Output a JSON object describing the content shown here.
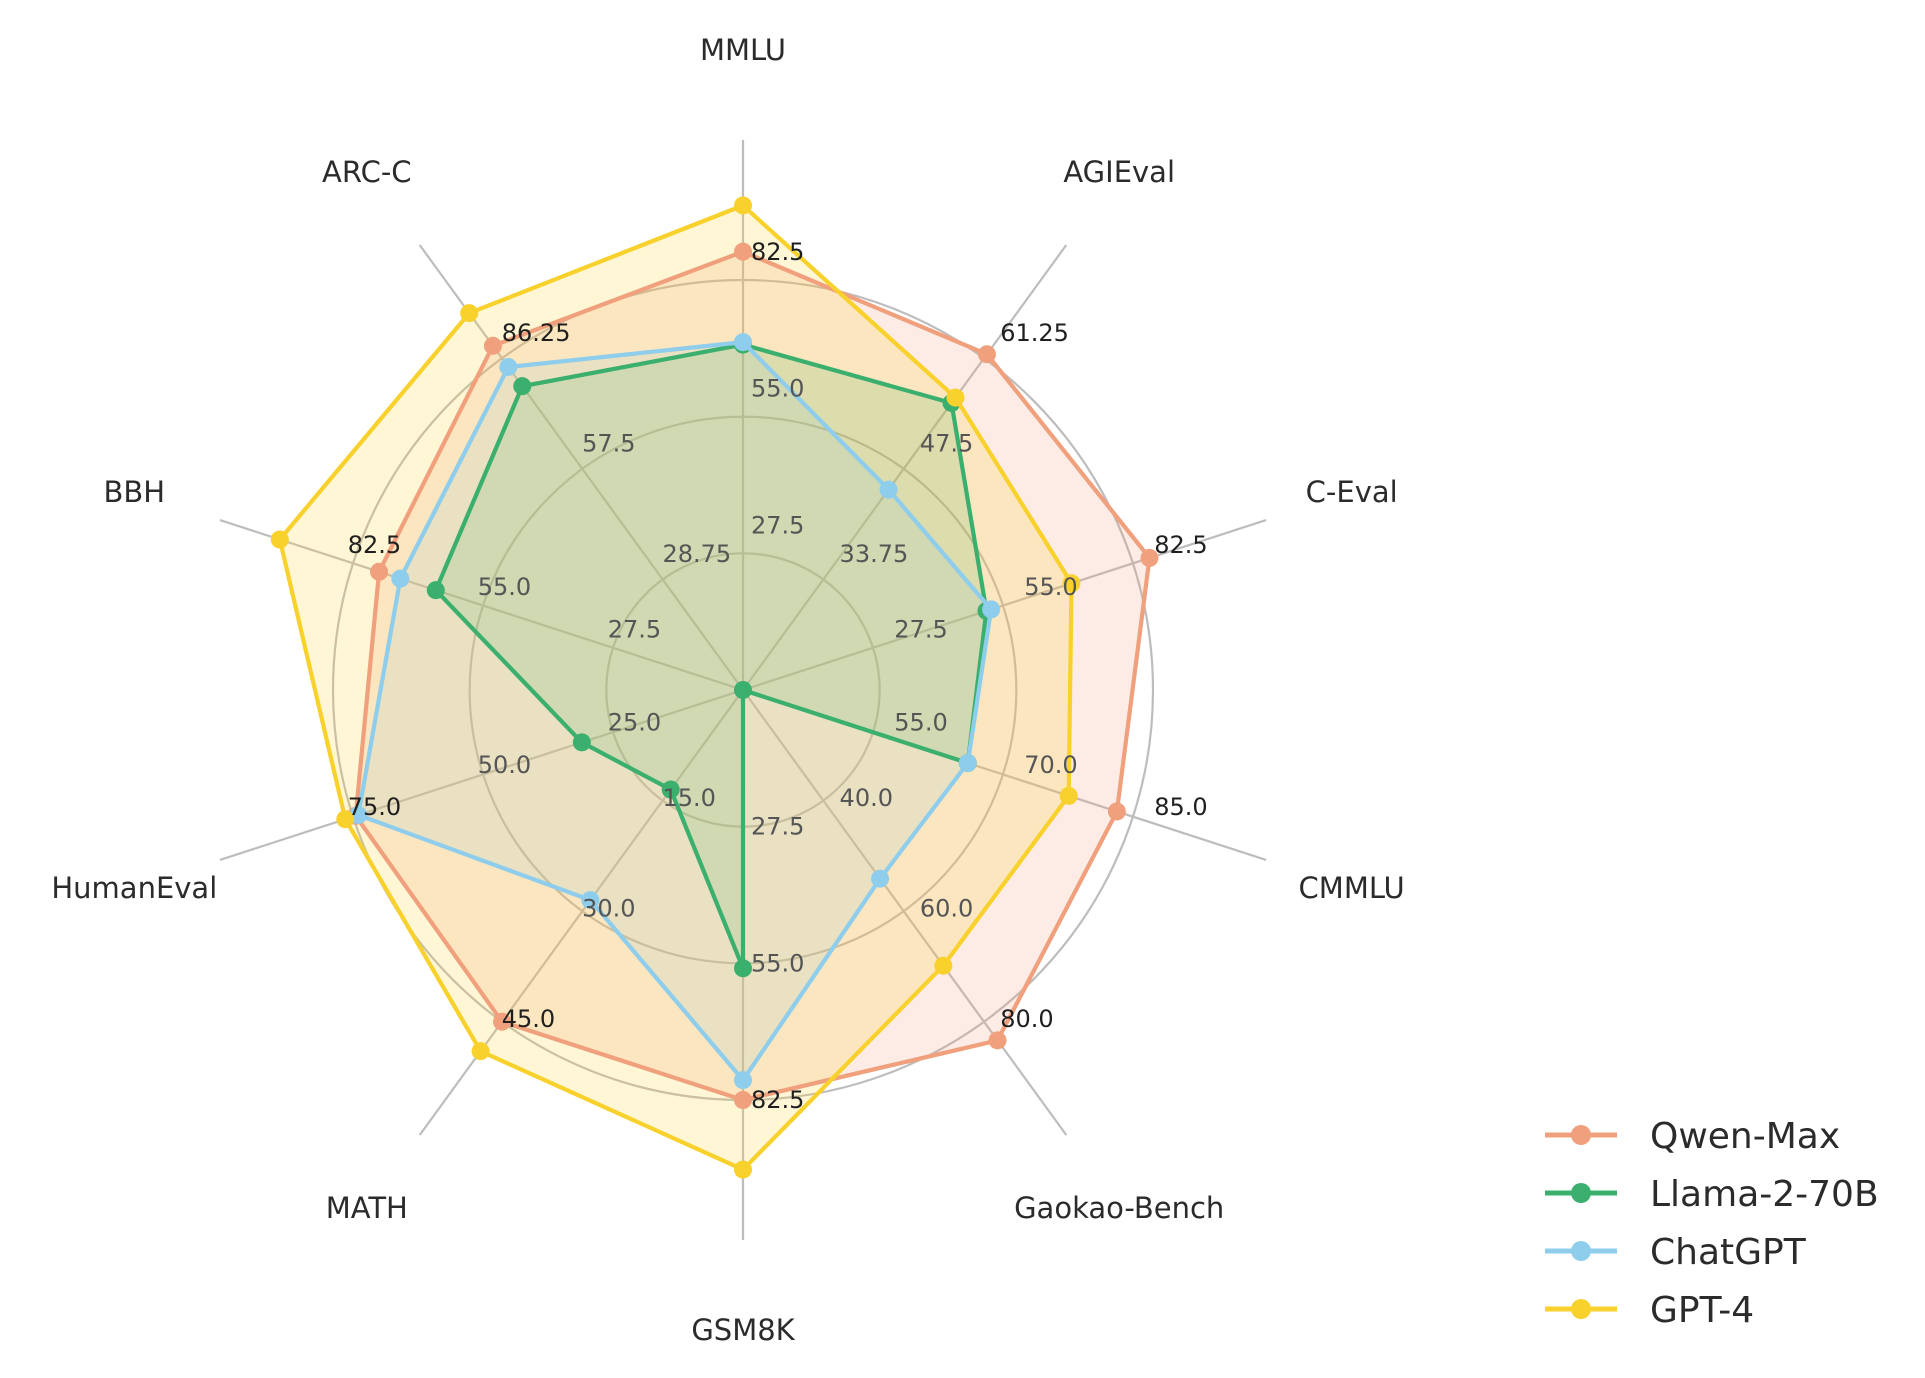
{
  "chart_data": {
    "type": "radar",
    "axes": [
      "MMLU",
      "AGIEval",
      "C-Eval",
      "CMMLU",
      "Gaokao-Bench",
      "GSM8K",
      "MATH",
      "HumanEval",
      "BBH",
      "ARC-C"
    ],
    "axis_ranges": [
      {
        "axis": "MMLU",
        "ticks": [
          "27.5",
          "55.0",
          "82.5"
        ],
        "max": 82.5
      },
      {
        "axis": "AGIEval",
        "ticks": [
          "33.75",
          "47.5",
          "61.25"
        ],
        "max": 61.25
      },
      {
        "axis": "C-Eval",
        "ticks": [
          "27.5",
          "55.0",
          "82.5"
        ],
        "max": 82.5
      },
      {
        "axis": "CMMLU",
        "ticks": [
          "55.0",
          "70.0",
          "85.0"
        ],
        "max": 85.0
      },
      {
        "axis": "Gaokao-Bench",
        "ticks": [
          "40.0",
          "60.0",
          "80.0"
        ],
        "max": 80.0
      },
      {
        "axis": "GSM8K",
        "ticks": [
          "27.5",
          "55.0",
          "82.5"
        ],
        "max": 82.5
      },
      {
        "axis": "MATH",
        "ticks": [
          "15.0",
          "30.0",
          "45.0"
        ],
        "max": 45.0
      },
      {
        "axis": "HumanEval",
        "ticks": [
          "25.0",
          "50.0",
          "75.0"
        ],
        "max": 75.0
      },
      {
        "axis": "BBH",
        "ticks": [
          "27.5",
          "55.0",
          "82.5"
        ],
        "max": 82.5
      },
      {
        "axis": "ARC-C",
        "ticks": [
          "28.75",
          "57.5",
          "86.25"
        ],
        "max": 86.25
      }
    ],
    "series": [
      {
        "name": "Qwen-Max",
        "color": "#f0a07c",
        "values": [
          88.2,
          62.0,
          86.0,
          81.5,
          84.5,
          82.5,
          45.0,
          74.5,
          77.0,
          89.5
        ]
      },
      {
        "name": "Llama-2-70B",
        "color": "#3aaf6e",
        "values": [
          69.5,
          53.0,
          51.5,
          49.0,
          0.0,
          56.0,
          13.5,
          31.0,
          65.0,
          79.0
        ]
      },
      {
        "name": "ChatGPT",
        "color": "#8ecdec",
        "values": [
          70.0,
          37.0,
          52.5,
          49.0,
          45.5,
          78.5,
          28.5,
          74.0,
          72.5,
          84.0
        ]
      },
      {
        "name": "GPT-4",
        "color": "#f8d12c",
        "values": [
          97.5,
          54.0,
          69.5,
          71.0,
          66.5,
          96.5,
          49.0,
          76.5,
          98.0,
          98.0
        ]
      }
    ],
    "legend_position": "bottom-right",
    "grid": true
  }
}
